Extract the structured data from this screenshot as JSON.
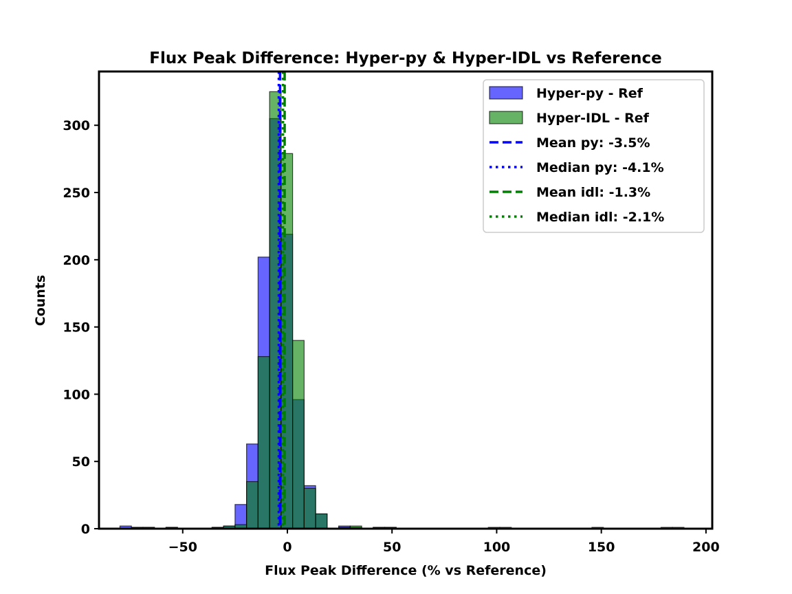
{
  "chart_data": {
    "type": "histogram",
    "title": "Flux Peak Difference: Hyper-py & Hyper-IDL vs Reference",
    "xlabel": "Flux Peak Difference (% vs Reference)",
    "ylabel": "Counts",
    "xlim": [
      -90,
      203
    ],
    "ylim": [
      0,
      340
    ],
    "xticks": [
      -50,
      0,
      50,
      100,
      150,
      200
    ],
    "yticks": [
      0,
      50,
      100,
      150,
      200,
      250,
      300
    ],
    "bin_width": 5.5,
    "bin_start": -80,
    "series": [
      {
        "name": "Hyper-py - Ref",
        "color": "#0000ff",
        "alpha": 0.6,
        "bins": [
          {
            "x0": -80,
            "count": 2
          },
          {
            "x0": -74.5,
            "count": 1
          },
          {
            "x0": -69,
            "count": 1
          },
          {
            "x0": -58,
            "count": 1
          },
          {
            "x0": -36,
            "count": 1
          },
          {
            "x0": -30.5,
            "count": 2
          },
          {
            "x0": -25,
            "count": 18
          },
          {
            "x0": -19.5,
            "count": 63
          },
          {
            "x0": -14,
            "count": 202
          },
          {
            "x0": -8.5,
            "count": 305
          },
          {
            "x0": -3,
            "count": 219
          },
          {
            "x0": 2.5,
            "count": 96
          },
          {
            "x0": 8,
            "count": 32
          },
          {
            "x0": 13.5,
            "count": 11
          },
          {
            "x0": 24.5,
            "count": 2
          },
          {
            "x0": 30,
            "count": 1
          },
          {
            "x0": 41,
            "count": 1
          },
          {
            "x0": 46.5,
            "count": 1
          }
        ]
      },
      {
        "name": "Hyper-IDL - Ref",
        "color": "#008000",
        "alpha": 0.6,
        "bins": [
          {
            "x0": -74.5,
            "count": 1
          },
          {
            "x0": -69,
            "count": 1
          },
          {
            "x0": -58,
            "count": 1
          },
          {
            "x0": -36,
            "count": 1
          },
          {
            "x0": -30.5,
            "count": 2
          },
          {
            "x0": -25,
            "count": 3
          },
          {
            "x0": -19.5,
            "count": 35
          },
          {
            "x0": -14,
            "count": 128
          },
          {
            "x0": -8.5,
            "count": 325
          },
          {
            "x0": -3,
            "count": 279
          },
          {
            "x0": 2.5,
            "count": 140
          },
          {
            "x0": 8,
            "count": 30
          },
          {
            "x0": 13.5,
            "count": 11
          },
          {
            "x0": 24.5,
            "count": 1
          },
          {
            "x0": 30,
            "count": 2
          },
          {
            "x0": 41,
            "count": 1
          },
          {
            "x0": 46.5,
            "count": 1
          },
          {
            "x0": 96,
            "count": 1
          },
          {
            "x0": 101.5,
            "count": 1
          },
          {
            "x0": 145.5,
            "count": 1
          },
          {
            "x0": 178.5,
            "count": 1
          },
          {
            "x0": 184,
            "count": 1
          }
        ]
      }
    ],
    "reference_lines": [
      {
        "label": "Mean py: -3.5%",
        "value": -3.5,
        "color": "#0000ff",
        "style": "dashed"
      },
      {
        "label": "Median py: -4.1%",
        "value": -4.1,
        "color": "#0000ff",
        "style": "dotted"
      },
      {
        "label": "Mean idl: -1.3%",
        "value": -1.3,
        "color": "#008000",
        "style": "dashed"
      },
      {
        "label": "Median idl: -2.1%",
        "value": -2.1,
        "color": "#008000",
        "style": "dotted"
      }
    ],
    "legend_position": "top-right",
    "grid": false
  }
}
